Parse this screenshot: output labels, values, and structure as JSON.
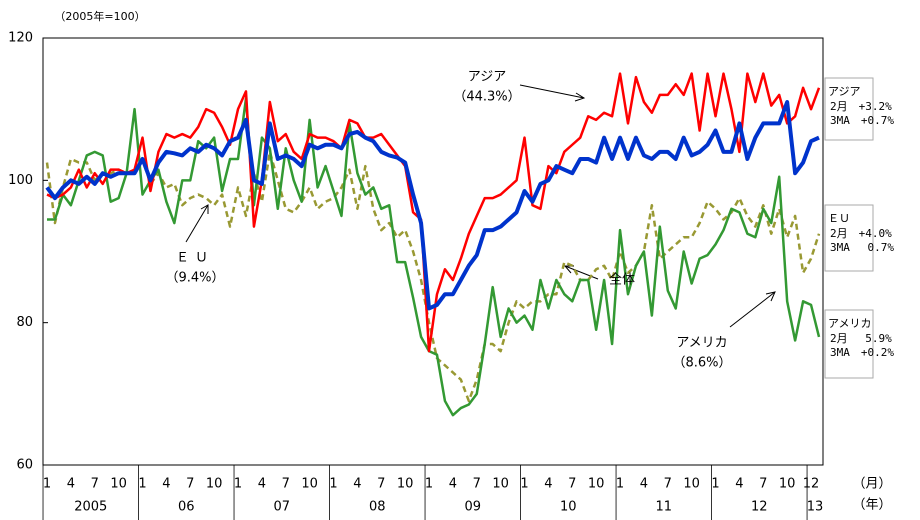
{
  "chart_data": {
    "type": "line",
    "unit_label": "（2005年=100）",
    "x_unit_label": "（月）",
    "year_unit_label": "（年）",
    "categories": [
      "1",
      null,
      null,
      "4",
      null,
      null,
      "7",
      null,
      null,
      "10",
      null,
      null,
      "1",
      null,
      null,
      "4",
      null,
      null,
      "7",
      null,
      null,
      "10",
      null,
      null,
      "1",
      null,
      null,
      "4",
      null,
      null,
      "7",
      null,
      null,
      "10",
      null,
      null,
      "1",
      null,
      null,
      "4",
      null,
      null,
      "7",
      null,
      null,
      "10",
      null,
      null,
      "1",
      null,
      null,
      "4",
      null,
      null,
      "7",
      null,
      null,
      "10",
      null,
      null,
      "1",
      null,
      null,
      "4",
      null,
      null,
      "7",
      null,
      null,
      "10",
      null,
      null,
      "1",
      null,
      null,
      "4",
      null,
      null,
      "7",
      null,
      null,
      "10",
      null,
      null,
      "1",
      null,
      null,
      "4",
      null,
      null,
      "7",
      null,
      null,
      "10",
      null,
      null,
      "12",
      null
    ],
    "years": [
      "2005",
      "06",
      "07",
      "08",
      "09",
      "10",
      "11",
      "12",
      "13"
    ],
    "ylim": [
      60,
      120
    ],
    "yticks": [
      60,
      80,
      100,
      120
    ],
    "series": [
      {
        "name": "アジア",
        "share_label": "（44.3%）",
        "color": "#ff0000",
        "width": 2.5,
        "dashed": false,
        "values": [
          98,
          97.5,
          98,
          99,
          101.5,
          99,
          101,
          99.5,
          101.5,
          101.5,
          101,
          101.5,
          106,
          98.5,
          104,
          106.5,
          106,
          106.5,
          106,
          107.5,
          110,
          109.5,
          107.5,
          105,
          110,
          112.5,
          93.5,
          100,
          111,
          105.5,
          106.5,
          104,
          103,
          106.5,
          106,
          106,
          105.5,
          104.5,
          108.5,
          108,
          106,
          106,
          106.5,
          105,
          103.5,
          102,
          95.5,
          94.5,
          76,
          84,
          87.5,
          86,
          89,
          92.5,
          95,
          97.5,
          97.5,
          98,
          99,
          100,
          106,
          96.5,
          96,
          102,
          101,
          104,
          105,
          106,
          109,
          108.5,
          109.5,
          109,
          115,
          108,
          114.5,
          111,
          109.5,
          112,
          112,
          113.5,
          112,
          115,
          107,
          115,
          109,
          115,
          110,
          104,
          115,
          111,
          115,
          110.5,
          112,
          108,
          109,
          113,
          110,
          113
        ]
      },
      {
        "name": "全体",
        "color": "#0033cc",
        "width": 4,
        "dashed": false,
        "values": [
          99,
          97.5,
          99,
          100,
          99.5,
          100.5,
          99.5,
          101,
          100.5,
          101,
          101,
          101,
          103,
          100,
          102.5,
          104,
          103.8,
          103.5,
          104.5,
          104,
          105,
          104.5,
          103.5,
          105.5,
          106,
          108.5,
          100,
          99.5,
          108,
          103,
          103.5,
          103,
          102,
          105,
          104.5,
          105,
          105,
          104.5,
          106.5,
          106.8,
          106,
          105.5,
          104,
          103.5,
          103.2,
          102.5,
          98,
          94,
          82,
          82.5,
          84,
          84,
          86,
          88,
          89.5,
          93,
          93,
          93.5,
          94.5,
          95.5,
          98.5,
          97,
          99.5,
          100,
          102,
          101.5,
          101,
          103,
          103,
          102.5,
          106,
          103,
          106,
          103,
          106,
          103.5,
          103,
          104,
          104,
          103,
          106,
          103.5,
          104,
          105,
          107,
          104,
          104,
          108,
          103,
          106,
          108,
          108,
          108,
          111,
          101,
          102.5,
          105.5,
          106
        ]
      },
      {
        "name": "ＥＵ",
        "share_label": "（9.4%）",
        "color": "#999933",
        "width": 2.5,
        "dashed": true,
        "values": [
          102.5,
          94,
          99,
          103,
          102.5,
          102.5,
          100,
          101,
          101,
          101.5,
          101,
          101,
          103,
          99.5,
          101,
          99,
          99.5,
          96.5,
          97.5,
          98,
          97.5,
          96.5,
          98,
          93.5,
          99,
          95,
          101,
          97,
          104,
          100,
          96,
          95.5,
          97,
          99,
          96,
          97,
          97.5,
          99,
          101.5,
          96,
          102,
          96,
          93,
          94,
          92,
          93,
          90,
          86,
          80,
          75,
          74,
          73,
          72,
          69,
          72,
          77,
          77,
          76,
          80,
          83,
          82,
          83,
          83,
          84,
          84,
          88.5,
          88,
          86,
          86,
          87.5,
          88,
          86,
          90,
          87,
          88,
          90,
          96.5,
          89,
          90,
          91,
          92,
          92,
          94,
          97,
          96,
          94.5,
          95.5,
          97.5,
          95,
          93.5,
          96.5,
          92.5,
          96,
          92,
          95,
          87,
          89,
          92.5
        ]
      },
      {
        "name": "アメリカ",
        "share_label": "（8.6%）",
        "color": "#339933",
        "width": 2.5,
        "dashed": false,
        "values": [
          94.5,
          94.5,
          98,
          96.5,
          100,
          103.5,
          104,
          103.5,
          97,
          97.5,
          101,
          110,
          98,
          100,
          101.5,
          97,
          94,
          100,
          100,
          105.5,
          104.5,
          106,
          98.5,
          103,
          103,
          111.5,
          96.5,
          106,
          104.5,
          96,
          104.5,
          100,
          97,
          108.5,
          99,
          102,
          98.5,
          95,
          108,
          101,
          98,
          99,
          96,
          96.5,
          88.5,
          88.5,
          83.5,
          78,
          76,
          75.5,
          69,
          67,
          68,
          68.5,
          70,
          77,
          85,
          78,
          82,
          80,
          81,
          79,
          86,
          82,
          86,
          84,
          83,
          86,
          86,
          79,
          86,
          77,
          93,
          84,
          88,
          90,
          81,
          93.5,
          84.5,
          82,
          90,
          85.5,
          89,
          89.5,
          91,
          93,
          96,
          95.5,
          92.5,
          92,
          96,
          94,
          100.5,
          83,
          77.5,
          83,
          82.5,
          78
        ]
      }
    ],
    "side_notes": [
      {
        "series": 0,
        "lines": [
          "2月　+3.2%",
          "3MA　+0.7%"
        ]
      },
      {
        "series": 2,
        "lines": [
          "2月　+4.0%",
          "3MA　 0.7%"
        ]
      },
      {
        "series": 3,
        "lines": [
          "2月　 5.9%",
          "3MA　+0.2%"
        ]
      }
    ]
  }
}
